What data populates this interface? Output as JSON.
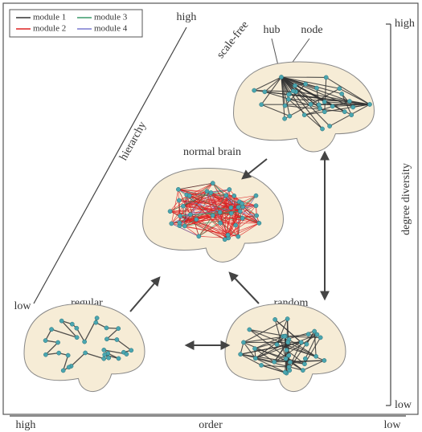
{
  "legend": {
    "items": [
      "module 1",
      "module 2",
      "module 3",
      "module 4"
    ]
  },
  "axes": {
    "hierarchy": {
      "label": "hierarchy",
      "high": "high",
      "low": "low"
    },
    "degree_diversity": {
      "label": "degree diversity",
      "high": "high",
      "low": "low"
    },
    "order": {
      "label": "order",
      "high": "high",
      "low": "low"
    }
  },
  "networks": {
    "scale_free": {
      "label": "scale-free",
      "hub": "hub",
      "node": "node"
    },
    "normal_brain": {
      "label": "normal brain"
    },
    "regular": {
      "label": "regular"
    },
    "random": {
      "label": "random"
    }
  }
}
